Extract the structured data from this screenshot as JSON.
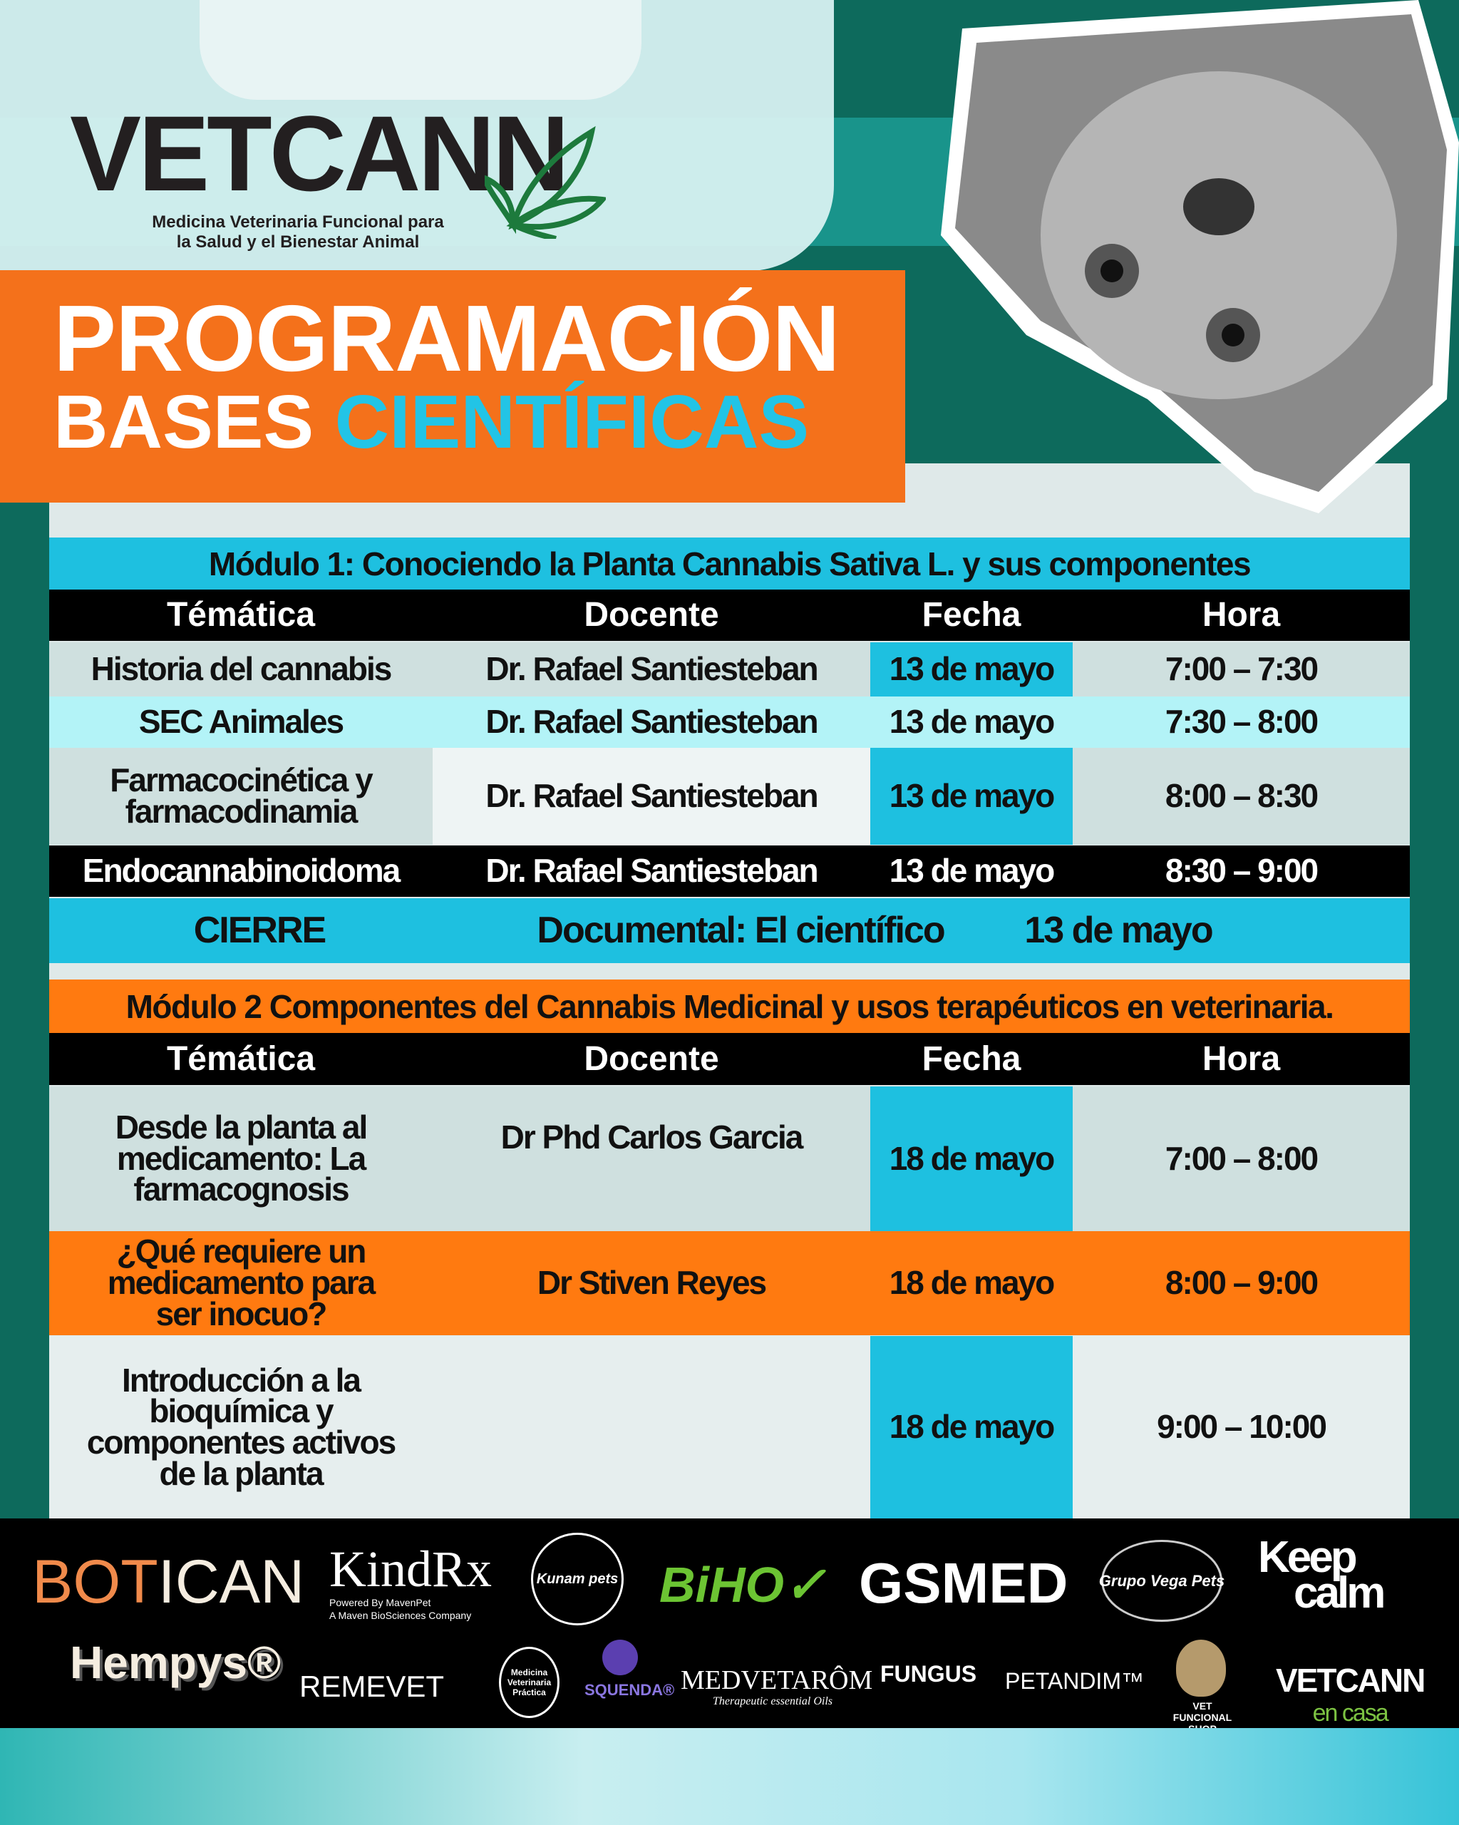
{
  "brand": {
    "name": "VETCANN",
    "tagline_1": "Medicina Veterinaria Funcional para",
    "tagline_2": "la Salud y el Bienestar Animal"
  },
  "banner": {
    "line1": "PROGRAMACIÓN",
    "line2a": "BASES",
    "line2b": "CIENTÍFICAS"
  },
  "colors": {
    "orange": "#f4711b",
    "cyan": "#22c4e6",
    "teal": "#0d6a5c",
    "black": "#000000"
  },
  "headers": [
    "Témática",
    "Docente",
    "Fecha",
    "Hora"
  ],
  "module1": {
    "title": "Módulo 1: Conociendo la Planta Cannabis Sativa L. y sus componentes",
    "rows": [
      {
        "tema": "Historia del cannabis",
        "docente": "Dr. Rafael Santiesteban",
        "fecha": "13 de mayo",
        "hora": "7:00  – 7:30"
      },
      {
        "tema": "SEC Animales",
        "docente": "Dr. Rafael Santiesteban",
        "fecha": "13 de mayo",
        "hora": "7:30  – 8:00"
      },
      {
        "tema": "Farmacocinética y farmacodinamia",
        "docente": "Dr. Rafael Santiesteban",
        "fecha": "13 de mayo",
        "hora": "8:00  – 8:30"
      },
      {
        "tema": "Endocannabinoidoma",
        "docente": "Dr. Rafael Santiesteban",
        "fecha": "13 de mayo",
        "hora": "8:30  – 9:00"
      }
    ],
    "cierre": {
      "label": "CIERRE",
      "titulo": "Documental: El científico",
      "fecha": "13 de mayo"
    }
  },
  "module2": {
    "title": "Módulo 2 Componentes del Cannabis Medicinal y usos terapéuticos en veterinaria.",
    "rows": [
      {
        "tema": "Desde la planta al medicamento: La farmacognosis",
        "docente": "Dr Phd Carlos Garcia",
        "fecha": "18 de mayo",
        "hora": "7:00  – 8:00"
      },
      {
        "tema": "¿Qué requiere un medicamento para ser inocuo?",
        "docente": "Dr Stiven Reyes",
        "fecha": "18 de mayo",
        "hora": "8:00  – 9:00"
      },
      {
        "tema": "Introducción a la bioquímica y componentes activos de la planta",
        "docente": "",
        "fecha": "18 de mayo",
        "hora": "9:00  – 10:00"
      }
    ]
  },
  "sponsors": {
    "botican_a": "BOT",
    "botican_b": "ICAN",
    "kindrx": "KindRx",
    "kindrx_sub1": "Powered By MavenPet",
    "kindrx_sub2": "A Maven BioSciences Company",
    "kunam": "Kunam pets",
    "bihov": "BiHO✓",
    "gsmed": "GSMED",
    "vegapets": "Grupo Vega Pets",
    "keepcalm_1": "Keep",
    "keepcalm_2": "calm",
    "hempys": "Hempys®",
    "remevet": "REMEVET",
    "mvp": "Medicina Veterinaria Práctica",
    "squenda": "SQUENDA®",
    "medvetarom": "MEDVETARÔM",
    "medvetarom_sub": "Therapeutic essential Oils",
    "fungus": "FUNGUS",
    "petandim": "PETANDIM™",
    "vetfuncional": "VET FUNCIONAL SHOP",
    "vetcann_casa_1": "VETCANN",
    "vetcann_casa_2": "en casa"
  }
}
